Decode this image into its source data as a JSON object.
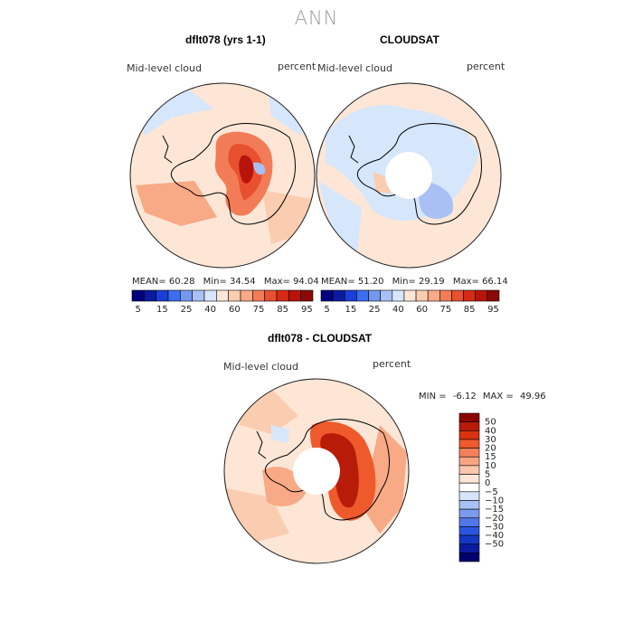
{
  "page_title": "ANN",
  "chart_data": [
    {
      "type": "heatmap",
      "projection": "south-polar-stereographic",
      "title": "dflt078 (yrs 1-1)",
      "variable_label": "Mid-level cloud",
      "units_label": "percent",
      "stats": {
        "mean_label": "MEAN=",
        "mean": "60.28",
        "min_label": "Min=",
        "min": "34.54",
        "max_label": "Max=",
        "max": "94.04"
      },
      "colorbar": {
        "orientation": "horizontal",
        "levels": [
          5,
          10,
          15,
          20,
          25,
          30,
          40,
          50,
          60,
          70,
          75,
          80,
          85,
          90,
          95
        ],
        "tick_labels": [
          "5",
          "15",
          "25",
          "40",
          "60",
          "75",
          "85",
          "95"
        ]
      }
    },
    {
      "type": "heatmap",
      "projection": "south-polar-stereographic",
      "title": "CLOUDSAT",
      "variable_label": "Mid-level cloud",
      "units_label": "percent",
      "stats": {
        "mean_label": "MEAN=",
        "mean": "51.20",
        "min_label": "Min=",
        "min": "29.19",
        "max_label": "Max=",
        "max": "66.14"
      },
      "colorbar": {
        "orientation": "horizontal",
        "levels": [
          5,
          10,
          15,
          20,
          25,
          30,
          40,
          50,
          60,
          70,
          75,
          80,
          85,
          90,
          95
        ],
        "tick_labels": [
          "5",
          "15",
          "25",
          "40",
          "60",
          "75",
          "85",
          "95"
        ]
      }
    },
    {
      "type": "heatmap",
      "projection": "south-polar-stereographic",
      "title": "dflt078 - CLOUDSAT",
      "variable_label": "Mid-level cloud",
      "units_label": "percent",
      "stats": {
        "min_label": "MIN =",
        "min": "-6.12",
        "max_label": "MAX =",
        "max": "49.96"
      },
      "colorbar": {
        "orientation": "vertical",
        "tick_labels": [
          "50",
          "40",
          "30",
          "20",
          "15",
          "10",
          "5",
          "0",
          "−5",
          "−10",
          "−15",
          "−20",
          "−30",
          "−40",
          "−50"
        ]
      }
    }
  ],
  "colors": {
    "hcolors": [
      "#00007f",
      "#0a1ba0",
      "#1a3fd8",
      "#3c6cf0",
      "#7597ee",
      "#a8c0f4",
      "#d8e6fc",
      "#fde6d6",
      "#fbcdb0",
      "#f8a985",
      "#f27c57",
      "#e8502f",
      "#d72a15",
      "#b9140c",
      "#8b0a06"
    ],
    "vcolors": [
      "#8b0000",
      "#b81b08",
      "#d8330e",
      "#ee5a2c",
      "#f4815a",
      "#f8a582",
      "#fbc7aa",
      "#fde6d6",
      "#ffffff",
      "#d6e4fb",
      "#a9c2f4",
      "#7b9bee",
      "#4f77e9",
      "#2b55e0",
      "#1637c4",
      "#0a1ba0",
      "#00006e"
    ],
    "light_orange": "#fde6d6",
    "light_blue": "#d6e6fb",
    "land_orange": "#f6a07c",
    "deep_red": "#d83414"
  }
}
